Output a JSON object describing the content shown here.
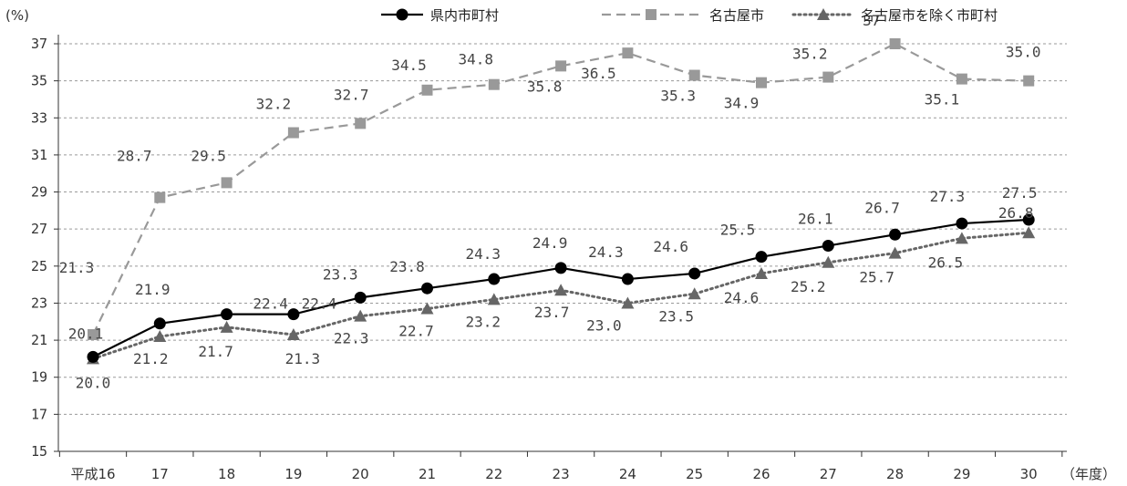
{
  "chart_data": {
    "type": "line",
    "y_unit": "(%)",
    "x_unit": "（年度）",
    "categories": [
      "平成16",
      "17",
      "18",
      "19",
      "20",
      "21",
      "22",
      "23",
      "24",
      "25",
      "26",
      "27",
      "28",
      "29",
      "30"
    ],
    "ylim": [
      15,
      37
    ],
    "yticks": [
      "15",
      "17",
      "19",
      "21",
      "23",
      "25",
      "27",
      "29",
      "31",
      "33",
      "35",
      "37"
    ],
    "grid": "horizontal-dashed",
    "legend_position": "top",
    "series": [
      {
        "name": "県内市町村",
        "color": "#000000",
        "line_style": "solid",
        "marker": "circle",
        "values": [
          20.1,
          21.9,
          22.4,
          22.4,
          23.3,
          23.8,
          24.3,
          24.9,
          24.3,
          24.6,
          25.5,
          26.1,
          26.7,
          27.3,
          27.5
        ],
        "labels": [
          "20.1",
          "21.9",
          "22.4",
          "22.4",
          "23.3",
          "23.8",
          "24.3",
          "24.9",
          "24.3",
          "24.6",
          "25.5",
          "26.1",
          "26.7",
          "27.3",
          "27.5"
        ]
      },
      {
        "name": "名古屋市",
        "color": "#999999",
        "line_style": "dashed",
        "marker": "square",
        "values": [
          21.3,
          28.7,
          29.5,
          32.2,
          32.7,
          34.5,
          34.8,
          35.8,
          36.5,
          35.3,
          34.9,
          35.2,
          37,
          35.1,
          35.0
        ],
        "labels": [
          "21.3",
          "28.7",
          "29.5",
          "32.2",
          "32.7",
          "34.5",
          "34.8",
          "35.8",
          "36.5",
          "35.3",
          "34.9",
          "35.2",
          "37",
          "35.1",
          "35.0"
        ]
      },
      {
        "name": "名古屋市を除く市町村",
        "color": "#666666",
        "line_style": "dotted",
        "marker": "triangle",
        "values": [
          20.0,
          21.2,
          21.7,
          21.3,
          22.3,
          22.7,
          23.2,
          23.7,
          23.0,
          23.5,
          24.6,
          25.2,
          25.7,
          26.5,
          26.8
        ],
        "labels": [
          "20.0",
          "21.2",
          "21.7",
          "21.3",
          "22.3",
          "22.7",
          "23.2",
          "23.7",
          "23.0",
          "23.5",
          "24.6",
          "25.2",
          "25.7",
          "26.5",
          "26.8"
        ]
      }
    ]
  }
}
